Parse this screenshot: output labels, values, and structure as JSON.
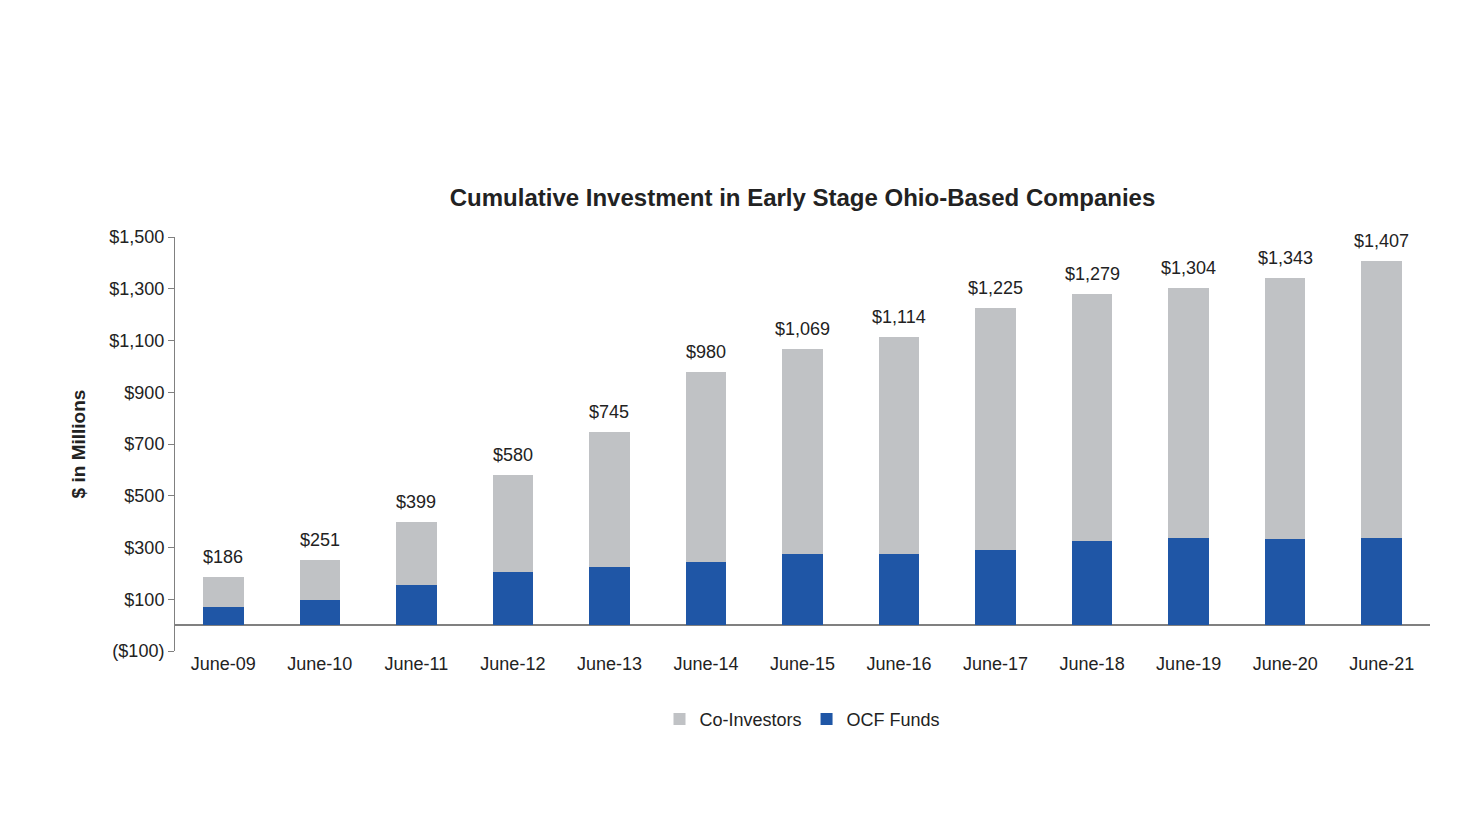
{
  "chart_data": {
    "type": "bar",
    "title": "Cumulative Investment in Early Stage Ohio-Based Companies",
    "y_label": "$ in Millions",
    "categories": [
      "June-09",
      "June-10",
      "June-11",
      "June-12",
      "June-13",
      "June-14",
      "June-15",
      "June-16",
      "June-17",
      "June-18",
      "June-19",
      "June-20",
      "June-21"
    ],
    "series": [
      {
        "name": "OCF Funds",
        "color": "#1f56a6",
        "values": [
          70,
          97,
          155,
          205,
          225,
          245,
          275,
          275,
          290,
          325,
          335,
          333,
          335
        ]
      },
      {
        "name": "Co-Investors",
        "color": "#c0c2c5",
        "values": [
          116,
          154,
          244,
          375,
          520,
          735,
          794,
          839,
          935,
          954,
          969,
          1010,
          1072
        ]
      }
    ],
    "annotations": [
      {
        "x": "June-09",
        "y": 186,
        "text": "$186"
      },
      {
        "x": "June-10",
        "y": 251,
        "text": "$251"
      },
      {
        "x": "June-11",
        "y": 399,
        "text": "$399"
      },
      {
        "x": "June-12",
        "y": 580,
        "text": "$580"
      },
      {
        "x": "June-13",
        "y": 745,
        "text": "$745"
      },
      {
        "x": "June-14",
        "y": 980,
        "text": "$980"
      },
      {
        "x": "June-15",
        "y": 1069,
        "text": "$1,069"
      },
      {
        "x": "June-16",
        "y": 1114,
        "text": "$1,114"
      },
      {
        "x": "June-17",
        "y": 1225,
        "text": "$1,225"
      },
      {
        "x": "June-18",
        "y": 1279,
        "text": "$1,279"
      },
      {
        "x": "June-19",
        "y": 1304,
        "text": "$1,304"
      },
      {
        "x": "June-20",
        "y": 1343,
        "text": "$1,343"
      },
      {
        "x": "June-21",
        "y": 1407,
        "text": "$1,407"
      }
    ],
    "ylim": [
      -100,
      1500
    ],
    "yticks": [
      {
        "value": -100,
        "label": "($100)"
      },
      {
        "value": 100,
        "label": "$100"
      },
      {
        "value": 300,
        "label": "$300"
      },
      {
        "value": 500,
        "label": "$500"
      },
      {
        "value": 700,
        "label": "$700"
      },
      {
        "value": 900,
        "label": "$900"
      },
      {
        "value": 1100,
        "label": "$1,100"
      },
      {
        "value": 1300,
        "label": "$1,300"
      },
      {
        "value": 1500,
        "label": "$1,500"
      }
    ],
    "stacked": true,
    "grid": false,
    "legend": "bottom"
  }
}
